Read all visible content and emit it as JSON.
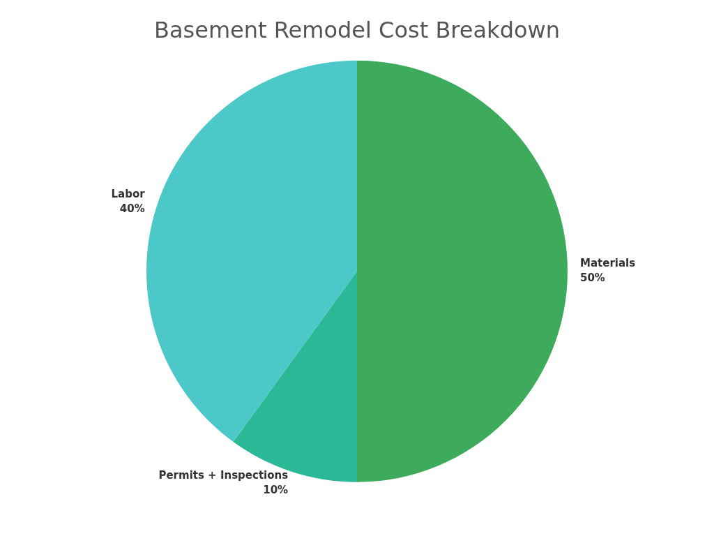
{
  "chart_data": {
    "type": "pie",
    "title": "Basement Remodel Cost Breakdown",
    "categories": [
      "Materials",
      "Permits + Inspections",
      "Labor"
    ],
    "values": [
      50,
      10,
      40
    ],
    "value_labels": [
      "50%",
      "10%",
      "40%"
    ],
    "colors": [
      "#3daa5c",
      "#2ab896",
      "#4dc8c8"
    ],
    "data_labels": true
  }
}
